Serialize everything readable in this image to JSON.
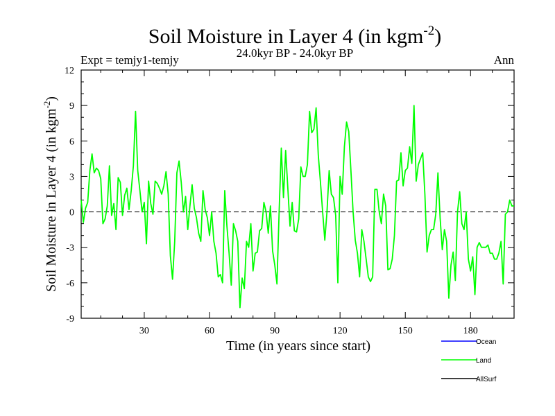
{
  "chart_data": {
    "type": "line",
    "title_main": "Soil Moisture in Layer 4 (in kgm",
    "title_sup": "-2",
    "title_close": ")",
    "subtitle": "24.0kyr BP - 24.0kyr BP",
    "left_label": "Expt = temjy1-temjy",
    "right_label": "Ann",
    "ylabel_main": "Soil Moisture in Layer 4 (in kgm",
    "ylabel_sup": "-2",
    "ylabel_close": ")",
    "xlabel": "Time (in years since start)",
    "xlim": [
      1,
      200
    ],
    "ylim": [
      -9,
      12
    ],
    "xticks": [
      30,
      60,
      90,
      120,
      150,
      180
    ],
    "xtick_labels": [
      "30",
      "60",
      "90",
      "120",
      "150",
      "180"
    ],
    "yticks": [
      -9,
      -6,
      -3,
      0,
      3,
      6,
      9,
      12
    ],
    "ytick_labels": [
      "-9",
      "-6",
      "-3",
      "0",
      "3",
      "6",
      "9",
      "12"
    ],
    "zero_line": 0,
    "legend": [
      {
        "name": "Ocean",
        "color": "#0000ff"
      },
      {
        "name": "Land",
        "color": "#00ff00"
      },
      {
        "name": "AllSurf",
        "color": "#000000"
      }
    ],
    "series": [
      {
        "name": "Land",
        "color": "#00ff00",
        "x_start": 1,
        "x_step": 1,
        "values": [
          1.0,
          -0.9,
          0.3,
          0.8,
          3.5,
          4.9,
          3.3,
          3.7,
          3.5,
          2.8,
          -1.0,
          -0.6,
          0.5,
          3.9,
          -0.3,
          0.7,
          -1.5,
          2.9,
          2.5,
          -0.3,
          1.4,
          2.0,
          0.2,
          1.8,
          3.9,
          8.5,
          3.5,
          1.8,
          0.0,
          0.8,
          -2.7,
          2.6,
          0.7,
          -0.2,
          2.6,
          2.4,
          2.0,
          1.5,
          2.2,
          3.4,
          1.5,
          -3.7,
          -5.7,
          -2.5,
          3.3,
          4.3,
          2.5,
          0.0,
          1.3,
          -1.5,
          0.5,
          2.3,
          0.3,
          -0.5,
          -1.8,
          -2.5,
          1.8,
          0.2,
          -0.5,
          -2.0,
          0.0,
          -2.5,
          -3.5,
          -5.5,
          -5.3,
          -6.0,
          1.8,
          -1.2,
          -3.5,
          -6.2,
          -1.0,
          -1.6,
          -2.5,
          -8.1,
          -5.6,
          -6.5,
          -2.5,
          -3.0,
          -1.0,
          -5.0,
          -3.5,
          -3.4,
          -1.6,
          -1.4,
          0.8,
          0.0,
          -1.8,
          0.5,
          -3.3,
          -4.5,
          -6.1,
          0.0,
          5.4,
          1.2,
          5.2,
          2.0,
          -1.2,
          0.8,
          -1.6,
          -1.7,
          -0.6,
          3.8,
          3.0,
          3.0,
          4.0,
          8.5,
          6.7,
          7.0,
          8.8,
          4.8,
          2.5,
          0.0,
          -2.4,
          0.0,
          3.5,
          1.5,
          1.2,
          -0.3,
          -6.0,
          3.0,
          1.5,
          5.5,
          7.6,
          6.8,
          3.5,
          0.0,
          -2.4,
          -3.5,
          -5.5,
          -1.5,
          -2.5,
          -4.0,
          -5.5,
          -5.9,
          -5.5,
          1.9,
          1.9,
          0.0,
          -1.0,
          1.5,
          0.5,
          -4.9,
          -4.8,
          -4.0,
          -2.0,
          2.6,
          2.7,
          5.0,
          2.2,
          3.5,
          3.7,
          5.5,
          4.1,
          9.0,
          2.6,
          4.0,
          4.5,
          5.0,
          1.5,
          -3.4,
          -2.0,
          -1.5,
          -1.5,
          -0.2,
          3.3,
          -0.5,
          -3.2,
          -1.5,
          -2.5,
          -7.3,
          -4.5,
          -3.4,
          -5.8,
          0.0,
          1.7,
          -1.0,
          -1.5,
          0.0,
          -4.0,
          -5.0,
          -3.8,
          -7.0,
          -3.0,
          -2.6,
          -3.0,
          -3.0,
          -3.0,
          -2.8,
          -3.5,
          -3.5,
          -4.0,
          -4.0,
          -3.5,
          -2.5,
          -6.1,
          -0.2,
          0.0,
          1.0,
          0.5,
          0.5
        ]
      }
    ]
  }
}
